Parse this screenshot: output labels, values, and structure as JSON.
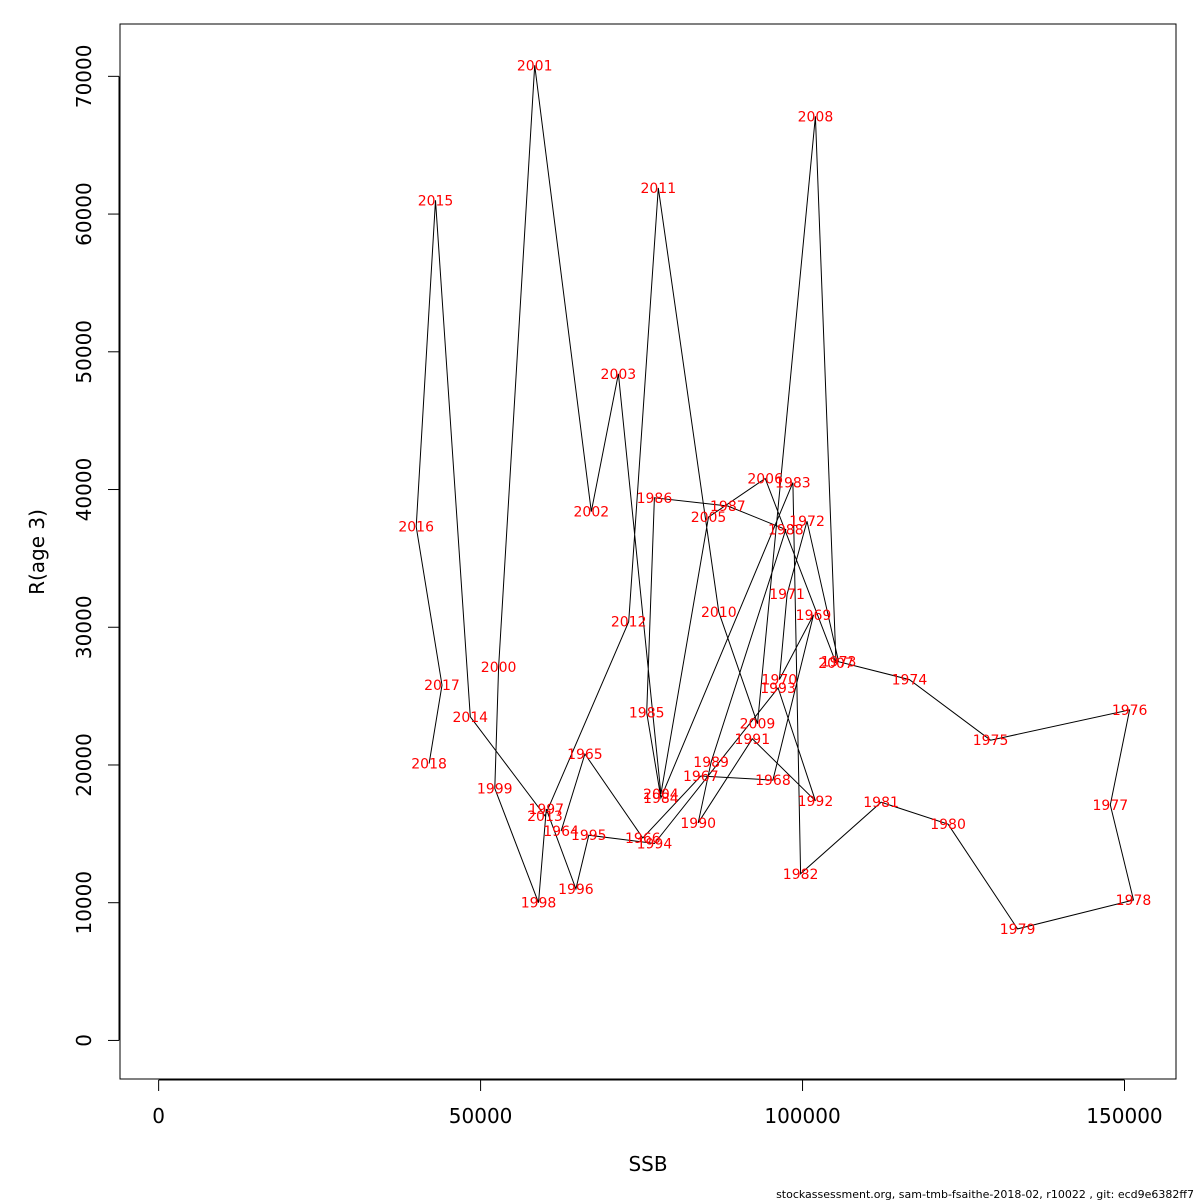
{
  "chart_data": {
    "type": "line",
    "title": "",
    "xlabel": "SSB",
    "ylabel": "R(age 3)",
    "xlim": [
      -6000,
      158000
    ],
    "ylim": [
      -2800,
      73800
    ],
    "xticks": [
      0,
      50000,
      100000,
      150000
    ],
    "yticks": [
      0,
      10000,
      20000,
      30000,
      40000,
      50000,
      60000,
      70000
    ],
    "grid": false,
    "line_color": "#000000",
    "label_color": "#ff0000",
    "points": [
      {
        "label": "1964",
        "x": 62500,
        "y": 15200
      },
      {
        "label": "1965",
        "x": 66200,
        "y": 20800
      },
      {
        "label": "1966",
        "x": 75200,
        "y": 14700
      },
      {
        "label": "1967",
        "x": 84200,
        "y": 19200
      },
      {
        "label": "1968",
        "x": 95400,
        "y": 18900
      },
      {
        "label": "1969",
        "x": 101700,
        "y": 30900
      },
      {
        "label": "1970",
        "x": 96400,
        "y": 26200
      },
      {
        "label": "1971",
        "x": 97600,
        "y": 32400
      },
      {
        "label": "1972",
        "x": 100700,
        "y": 37700
      },
      {
        "label": "1973",
        "x": 105600,
        "y": 27500
      },
      {
        "label": "1974",
        "x": 116600,
        "y": 26200
      },
      {
        "label": "1975",
        "x": 129200,
        "y": 21800
      },
      {
        "label": "1976",
        "x": 150800,
        "y": 24000
      },
      {
        "label": "1977",
        "x": 147800,
        "y": 17100
      },
      {
        "label": "1978",
        "x": 151400,
        "y": 10200
      },
      {
        "label": "1979",
        "x": 133400,
        "y": 8100
      },
      {
        "label": "1980",
        "x": 122600,
        "y": 15700
      },
      {
        "label": "1981",
        "x": 112200,
        "y": 17300
      },
      {
        "label": "1982",
        "x": 99700,
        "y": 12100
      },
      {
        "label": "1983",
        "x": 98500,
        "y": 40500
      },
      {
        "label": "1984",
        "x": 78000,
        "y": 17600
      },
      {
        "label": "1985",
        "x": 75800,
        "y": 23800
      },
      {
        "label": "1986",
        "x": 77000,
        "y": 39400
      },
      {
        "label": "1987",
        "x": 88400,
        "y": 38800
      },
      {
        "label": "1988",
        "x": 97400,
        "y": 37100
      },
      {
        "label": "1989",
        "x": 85800,
        "y": 20200
      },
      {
        "label": "1990",
        "x": 83800,
        "y": 15800
      },
      {
        "label": "1991",
        "x": 92200,
        "y": 21900
      },
      {
        "label": "1992",
        "x": 102000,
        "y": 17400
      },
      {
        "label": "1993",
        "x": 96200,
        "y": 25600
      },
      {
        "label": "1994",
        "x": 77000,
        "y": 14300
      },
      {
        "label": "1995",
        "x": 66800,
        "y": 14900
      },
      {
        "label": "1996",
        "x": 64800,
        "y": 11000
      },
      {
        "label": "1997",
        "x": 60200,
        "y": 16800
      },
      {
        "label": "1998",
        "x": 59000,
        "y": 10000
      },
      {
        "label": "1999",
        "x": 52200,
        "y": 18300
      },
      {
        "label": "2000",
        "x": 52800,
        "y": 27100
      },
      {
        "label": "2001",
        "x": 58400,
        "y": 70800
      },
      {
        "label": "2002",
        "x": 67200,
        "y": 38400
      },
      {
        "label": "2003",
        "x": 71400,
        "y": 48400
      },
      {
        "label": "2004",
        "x": 78000,
        "y": 17900
      },
      {
        "label": "2005",
        "x": 85400,
        "y": 38000
      },
      {
        "label": "2006",
        "x": 94200,
        "y": 40800
      },
      {
        "label": "2007",
        "x": 105200,
        "y": 27400
      },
      {
        "label": "2008",
        "x": 102000,
        "y": 67100
      },
      {
        "label": "2009",
        "x": 93000,
        "y": 23000
      },
      {
        "label": "2010",
        "x": 87000,
        "y": 31100
      },
      {
        "label": "2011",
        "x": 77600,
        "y": 61900
      },
      {
        "label": "2012",
        "x": 73000,
        "y": 30400
      },
      {
        "label": "2013",
        "x": 60000,
        "y": 16300
      },
      {
        "label": "2014",
        "x": 48400,
        "y": 23500
      },
      {
        "label": "2015",
        "x": 43000,
        "y": 61000
      },
      {
        "label": "2016",
        "x": 40000,
        "y": 37300
      },
      {
        "label": "2017",
        "x": 44000,
        "y": 25800
      },
      {
        "label": "2018",
        "x": 42000,
        "y": 20100
      }
    ]
  },
  "footer": "stockassessment.org, sam-tmb-fsaithe-2018-02, r10022 , git: ecd9e6382ff7"
}
